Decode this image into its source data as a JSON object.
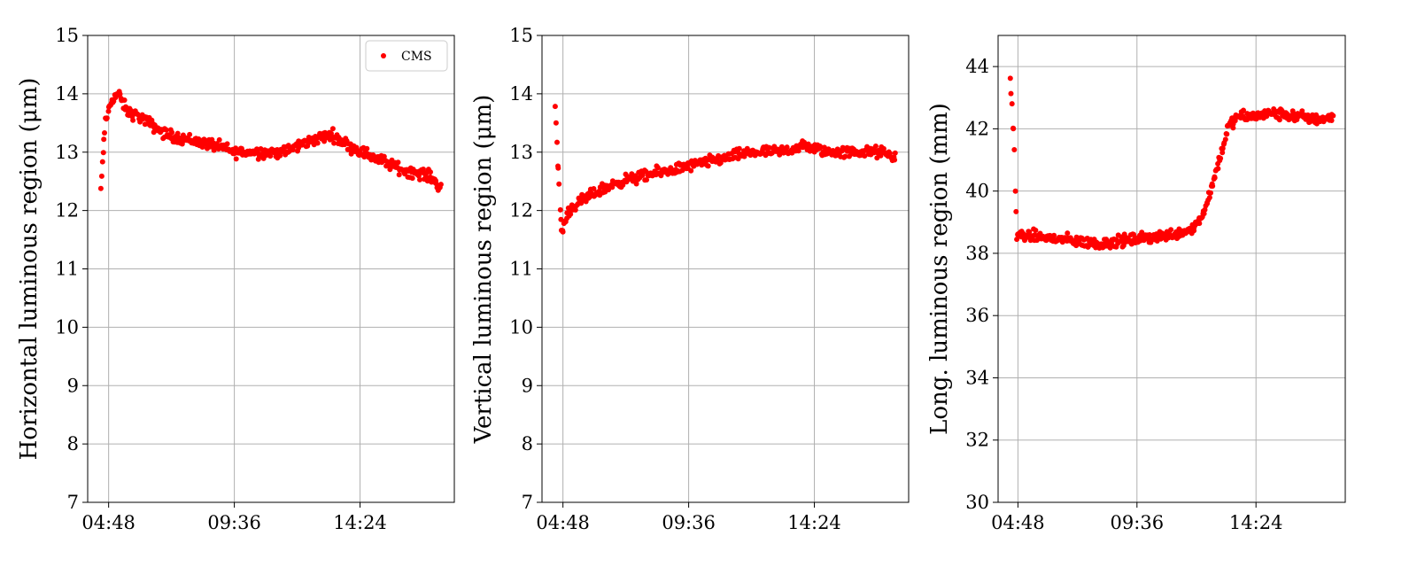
{
  "colors": {
    "marker": "#ff0000",
    "grid": "#b0b0b0",
    "axes": "#000000"
  },
  "chart_data": [
    {
      "type": "scatter",
      "ylabel": "Horizontal luminous region (μm)",
      "ylim": [
        7,
        15
      ],
      "yticks": [
        7,
        8,
        9,
        10,
        11,
        12,
        13,
        14,
        15
      ],
      "xlim": [
        "04:00",
        "18:00"
      ],
      "xticks": [
        "04:48",
        "09:36",
        "14:24"
      ],
      "grid": true,
      "legend": {
        "placement": "top-right",
        "entries": [
          "CMS"
        ]
      },
      "series": [
        {
          "name": "CMS",
          "color": "#ff0000",
          "x_start": "04:30",
          "x_end": "17:30",
          "profile": [
            [
              "04:30",
              12.3
            ],
            [
              "04:40",
              13.5
            ],
            [
              "04:55",
              13.9
            ],
            [
              "05:10",
              14.0
            ],
            [
              "05:30",
              13.7
            ],
            [
              "06:00",
              13.6
            ],
            [
              "07:00",
              13.3
            ],
            [
              "08:00",
              13.2
            ],
            [
              "09:00",
              13.1
            ],
            [
              "09:36",
              13.0
            ],
            [
              "10:30",
              13.0
            ],
            [
              "11:30",
              13.0
            ],
            [
              "12:30",
              13.2
            ],
            [
              "13:20",
              13.3
            ],
            [
              "14:00",
              13.1
            ],
            [
              "15:00",
              12.9
            ],
            [
              "16:00",
              12.7
            ],
            [
              "17:00",
              12.6
            ],
            [
              "17:30",
              12.4
            ]
          ]
        }
      ]
    },
    {
      "type": "scatter",
      "ylabel": "Vertical luminous region (μm)",
      "ylim": [
        7,
        15
      ],
      "yticks": [
        7,
        8,
        9,
        10,
        11,
        12,
        13,
        14,
        15
      ],
      "xlim": [
        "04:00",
        "18:00"
      ],
      "xticks": [
        "04:48",
        "09:36",
        "14:24"
      ],
      "grid": true,
      "series": [
        {
          "name": "CMS",
          "color": "#ff0000",
          "x_start": "04:30",
          "x_end": "17:30",
          "profile": [
            [
              "04:30",
              13.8
            ],
            [
              "04:38",
              12.6
            ],
            [
              "04:45",
              11.6
            ],
            [
              "05:00",
              12.0
            ],
            [
              "06:00",
              12.3
            ],
            [
              "07:00",
              12.5
            ],
            [
              "08:00",
              12.6
            ],
            [
              "09:00",
              12.7
            ],
            [
              "10:00",
              12.8
            ],
            [
              "11:00",
              12.9
            ],
            [
              "12:00",
              13.0
            ],
            [
              "13:00",
              13.0
            ],
            [
              "14:00",
              13.1
            ],
            [
              "15:00",
              13.0
            ],
            [
              "16:00",
              13.0
            ],
            [
              "17:00",
              13.0
            ],
            [
              "17:30",
              12.9
            ]
          ]
        }
      ]
    },
    {
      "type": "scatter",
      "ylabel": "Long. luminous region (mm)",
      "ylim": [
        30,
        45
      ],
      "yticks": [
        30,
        32,
        34,
        36,
        38,
        40,
        42,
        44
      ],
      "xlim": [
        "04:00",
        "18:00"
      ],
      "xticks": [
        "04:48",
        "09:36",
        "14:24"
      ],
      "grid": true,
      "series": [
        {
          "name": "CMS",
          "color": "#ff0000",
          "x_start": "04:30",
          "x_end": "17:30",
          "profile": [
            [
              "04:30",
              43.5
            ],
            [
              "04:38",
              41.8
            ],
            [
              "04:45",
              38.6
            ],
            [
              "06:00",
              38.5
            ],
            [
              "07:00",
              38.4
            ],
            [
              "08:00",
              38.3
            ],
            [
              "09:00",
              38.4
            ],
            [
              "10:00",
              38.5
            ],
            [
              "11:00",
              38.6
            ],
            [
              "11:50",
              38.8
            ],
            [
              "12:15",
              39.2
            ],
            [
              "12:45",
              40.5
            ],
            [
              "13:15",
              42.0
            ],
            [
              "13:40",
              42.4
            ],
            [
              "14:24",
              42.4
            ],
            [
              "15:00",
              42.5
            ],
            [
              "16:00",
              42.4
            ],
            [
              "17:00",
              42.3
            ],
            [
              "17:30",
              42.4
            ]
          ]
        }
      ]
    }
  ]
}
